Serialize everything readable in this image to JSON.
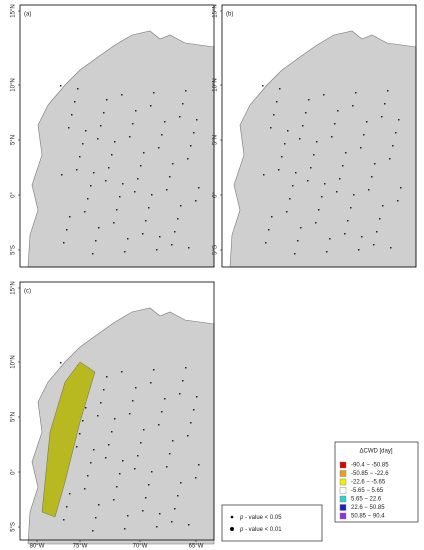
{
  "panels": [
    {
      "label": "(a)"
    },
    {
      "label": "(b)"
    },
    {
      "label": "(c)"
    }
  ],
  "axes": {
    "lat_labels": [
      "15°N",
      "10°N",
      "5°N",
      "0°",
      "5°S"
    ],
    "lon_labels": [
      "80°W",
      "75°W",
      "70°W",
      "65°W"
    ]
  },
  "legend": {
    "title": "ΔCWD [day]",
    "classes": [
      {
        "label": "-90.4 − -50.85",
        "color": "#dd0000"
      },
      {
        "label": "-50.85 − -22.6",
        "color": "#e8a020"
      },
      {
        "label": "-22.6 − -5.65",
        "color": "#f0f000"
      },
      {
        "label": "-5.65 − 5.65",
        "color": "#ffffff"
      },
      {
        "label": "5.65 − 22.6",
        "color": "#30d0d0"
      },
      {
        "label": "22.6 − 50.85",
        "color": "#2020c0"
      },
      {
        "label": "50.85 − 90.4",
        "color": "#9030e0"
      }
    ]
  },
  "significance": [
    {
      "symbol": "p",
      "text": " - value < 0.05"
    },
    {
      "symbol": "p",
      "text": " - value < 0.01"
    }
  ]
}
